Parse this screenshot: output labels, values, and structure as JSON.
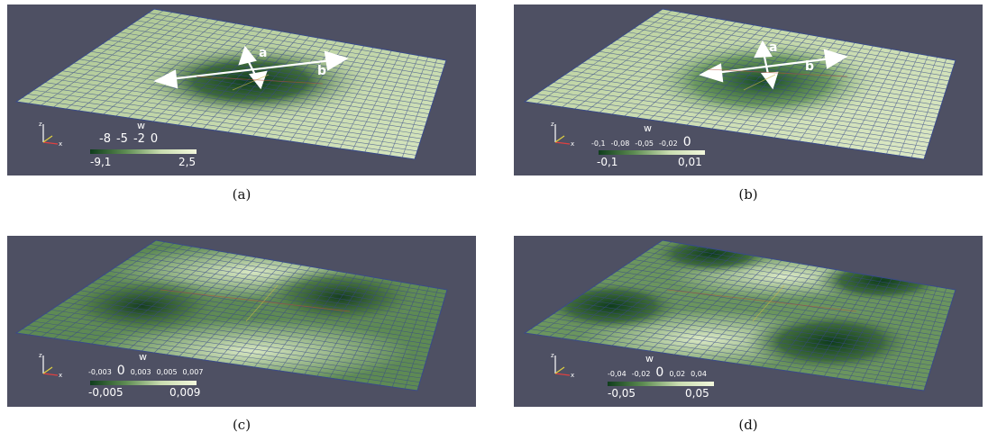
{
  "panels": [
    {
      "caption": "(a)",
      "legend": {
        "title": "w",
        "ticks": [
          "-8",
          "-5",
          "-2",
          "0"
        ],
        "min": "-9,1",
        "max": "2,5"
      },
      "arrow_labels": {
        "short": "a",
        "long": "b"
      }
    },
    {
      "caption": "(b)",
      "legend": {
        "title": "w",
        "ticks": [
          "-0,1",
          "-0,08",
          "-0,05",
          "-0,02",
          "0"
        ],
        "min": "-0,1",
        "max": "0,01"
      },
      "arrow_labels": {
        "short": "a",
        "long": "b"
      }
    },
    {
      "caption": "(c)",
      "legend": {
        "title": "w",
        "ticks": [
          "-0,003",
          "0",
          "0,003",
          "0,005",
          "0,007"
        ],
        "min": "-0,005",
        "max": "0,009"
      }
    },
    {
      "caption": "(d)",
      "legend": {
        "title": "w",
        "ticks": [
          "-0,04",
          "-0,02",
          "0",
          "0,02",
          "0,04"
        ],
        "min": "-0,05",
        "max": "0,05"
      }
    }
  ],
  "colors": {
    "background": "#4e5063",
    "plate_light": "#c9ddb0",
    "plate_dark": "#0f3d1c",
    "grid": "#3a4a8a"
  }
}
